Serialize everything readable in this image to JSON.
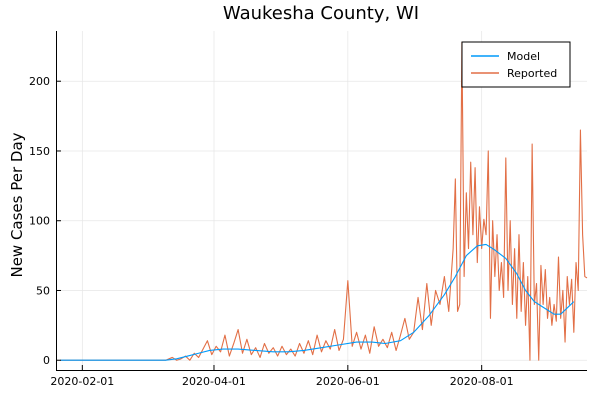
{
  "chart_data": {
    "type": "line",
    "title": "Waukesha County, WI",
    "xlabel": "",
    "ylabel": "New Cases Per Day",
    "xlim": [
      "2020-01-20",
      "2020-09-18"
    ],
    "ylim": [
      -7,
      236
    ],
    "x_ticks": [
      "2020-02-01",
      "2020-04-01",
      "2020-06-01",
      "2020-08-01"
    ],
    "y_ticks": [
      0,
      50,
      100,
      150,
      200
    ],
    "grid": true,
    "legend": "top-right",
    "series": [
      {
        "name": "Model",
        "color": "#009AFA",
        "points": [
          [
            "2020-01-22",
            0
          ],
          [
            "2020-02-15",
            0
          ],
          [
            "2020-03-01",
            0
          ],
          [
            "2020-03-10",
            0
          ],
          [
            "2020-03-15",
            1
          ],
          [
            "2020-03-20",
            3
          ],
          [
            "2020-03-25",
            5
          ],
          [
            "2020-03-30",
            7
          ],
          [
            "2020-04-05",
            8
          ],
          [
            "2020-04-12",
            8
          ],
          [
            "2020-04-20",
            7
          ],
          [
            "2020-04-28",
            6
          ],
          [
            "2020-05-05",
            6
          ],
          [
            "2020-05-12",
            7
          ],
          [
            "2020-05-20",
            9
          ],
          [
            "2020-05-28",
            11
          ],
          [
            "2020-06-05",
            13
          ],
          [
            "2020-06-12",
            13
          ],
          [
            "2020-06-18",
            12
          ],
          [
            "2020-06-25",
            14
          ],
          [
            "2020-07-01",
            20
          ],
          [
            "2020-07-08",
            32
          ],
          [
            "2020-07-15",
            47
          ],
          [
            "2020-07-20",
            60
          ],
          [
            "2020-07-25",
            75
          ],
          [
            "2020-07-30",
            82
          ],
          [
            "2020-08-03",
            83
          ],
          [
            "2020-08-07",
            79
          ],
          [
            "2020-08-12",
            73
          ],
          [
            "2020-08-17",
            62
          ],
          [
            "2020-08-21",
            50
          ],
          [
            "2020-08-25",
            42
          ],
          [
            "2020-08-30",
            37
          ],
          [
            "2020-09-03",
            33
          ],
          [
            "2020-09-06",
            33
          ],
          [
            "2020-09-10",
            39
          ],
          [
            "2020-09-12",
            42
          ]
        ]
      },
      {
        "name": "Reported",
        "color": "#E26F46",
        "points": [
          [
            "2020-01-22",
            0
          ],
          [
            "2020-02-15",
            0
          ],
          [
            "2020-03-10",
            0
          ],
          [
            "2020-03-13",
            2
          ],
          [
            "2020-03-15",
            0
          ],
          [
            "2020-03-17",
            1
          ],
          [
            "2020-03-19",
            3
          ],
          [
            "2020-03-21",
            0
          ],
          [
            "2020-03-23",
            5
          ],
          [
            "2020-03-25",
            2
          ],
          [
            "2020-03-27",
            8
          ],
          [
            "2020-03-29",
            14
          ],
          [
            "2020-03-31",
            4
          ],
          [
            "2020-04-02",
            10
          ],
          [
            "2020-04-04",
            6
          ],
          [
            "2020-04-06",
            18
          ],
          [
            "2020-04-08",
            3
          ],
          [
            "2020-04-10",
            12
          ],
          [
            "2020-04-12",
            22
          ],
          [
            "2020-04-14",
            5
          ],
          [
            "2020-04-16",
            15
          ],
          [
            "2020-04-18",
            4
          ],
          [
            "2020-04-20",
            9
          ],
          [
            "2020-04-22",
            2
          ],
          [
            "2020-04-24",
            12
          ],
          [
            "2020-04-26",
            5
          ],
          [
            "2020-04-28",
            9
          ],
          [
            "2020-04-30",
            3
          ],
          [
            "2020-05-02",
            10
          ],
          [
            "2020-05-04",
            4
          ],
          [
            "2020-05-06",
            8
          ],
          [
            "2020-05-08",
            3
          ],
          [
            "2020-05-10",
            12
          ],
          [
            "2020-05-12",
            5
          ],
          [
            "2020-05-14",
            14
          ],
          [
            "2020-05-16",
            4
          ],
          [
            "2020-05-18",
            18
          ],
          [
            "2020-05-20",
            6
          ],
          [
            "2020-05-22",
            14
          ],
          [
            "2020-05-24",
            8
          ],
          [
            "2020-05-26",
            22
          ],
          [
            "2020-05-28",
            7
          ],
          [
            "2020-05-30",
            15
          ],
          [
            "2020-06-01",
            57
          ],
          [
            "2020-06-03",
            10
          ],
          [
            "2020-06-05",
            20
          ],
          [
            "2020-06-07",
            8
          ],
          [
            "2020-06-09",
            18
          ],
          [
            "2020-06-11",
            5
          ],
          [
            "2020-06-13",
            24
          ],
          [
            "2020-06-15",
            10
          ],
          [
            "2020-06-17",
            15
          ],
          [
            "2020-06-19",
            9
          ],
          [
            "2020-06-21",
            20
          ],
          [
            "2020-06-23",
            7
          ],
          [
            "2020-06-25",
            18
          ],
          [
            "2020-06-27",
            30
          ],
          [
            "2020-06-29",
            15
          ],
          [
            "2020-07-01",
            20
          ],
          [
            "2020-07-03",
            45
          ],
          [
            "2020-07-05",
            22
          ],
          [
            "2020-07-07",
            55
          ],
          [
            "2020-07-09",
            25
          ],
          [
            "2020-07-11",
            50
          ],
          [
            "2020-07-13",
            40
          ],
          [
            "2020-07-15",
            60
          ],
          [
            "2020-07-17",
            35
          ],
          [
            "2020-07-19",
            80
          ],
          [
            "2020-07-20",
            130
          ],
          [
            "2020-07-21",
            35
          ],
          [
            "2020-07-22",
            40
          ],
          [
            "2020-07-23",
            228
          ],
          [
            "2020-07-24",
            60
          ],
          [
            "2020-07-25",
            120
          ],
          [
            "2020-07-26",
            80
          ],
          [
            "2020-07-27",
            142
          ],
          [
            "2020-07-28",
            90
          ],
          [
            "2020-07-29",
            138
          ],
          [
            "2020-07-30",
            70
          ],
          [
            "2020-07-31",
            110
          ],
          [
            "2020-08-01",
            80
          ],
          [
            "2020-08-02",
            101
          ],
          [
            "2020-08-03",
            90
          ],
          [
            "2020-08-04",
            150
          ],
          [
            "2020-08-05",
            30
          ],
          [
            "2020-08-06",
            100
          ],
          [
            "2020-08-07",
            60
          ],
          [
            "2020-08-08",
            90
          ],
          [
            "2020-08-09",
            50
          ],
          [
            "2020-08-10",
            70
          ],
          [
            "2020-08-11",
            45
          ],
          [
            "2020-08-12",
            145
          ],
          [
            "2020-08-13",
            50
          ],
          [
            "2020-08-14",
            100
          ],
          [
            "2020-08-15",
            40
          ],
          [
            "2020-08-16",
            80
          ],
          [
            "2020-08-17",
            30
          ],
          [
            "2020-08-18",
            90
          ],
          [
            "2020-08-19",
            35
          ],
          [
            "2020-08-20",
            70
          ],
          [
            "2020-08-21",
            25
          ],
          [
            "2020-08-22",
            60
          ],
          [
            "2020-08-23",
            0
          ],
          [
            "2020-08-24",
            155
          ],
          [
            "2020-08-25",
            40
          ],
          [
            "2020-08-26",
            55
          ],
          [
            "2020-08-27",
            0
          ],
          [
            "2020-08-28",
            68
          ],
          [
            "2020-08-29",
            40
          ],
          [
            "2020-08-30",
            65
          ],
          [
            "2020-08-31",
            30
          ],
          [
            "2020-09-01",
            45
          ],
          [
            "2020-09-02",
            25
          ],
          [
            "2020-09-03",
            40
          ],
          [
            "2020-09-04",
            28
          ],
          [
            "2020-09-05",
            74
          ],
          [
            "2020-09-06",
            30
          ],
          [
            "2020-09-07",
            50
          ],
          [
            "2020-09-08",
            13
          ],
          [
            "2020-09-09",
            60
          ],
          [
            "2020-09-10",
            40
          ],
          [
            "2020-09-11",
            58
          ],
          [
            "2020-09-12",
            20
          ],
          [
            "2020-09-13",
            70
          ],
          [
            "2020-09-14",
            50
          ],
          [
            "2020-09-15",
            165
          ],
          [
            "2020-09-16",
            90
          ],
          [
            "2020-09-17",
            60
          ],
          [
            "2020-09-18",
            59
          ]
        ]
      }
    ]
  }
}
